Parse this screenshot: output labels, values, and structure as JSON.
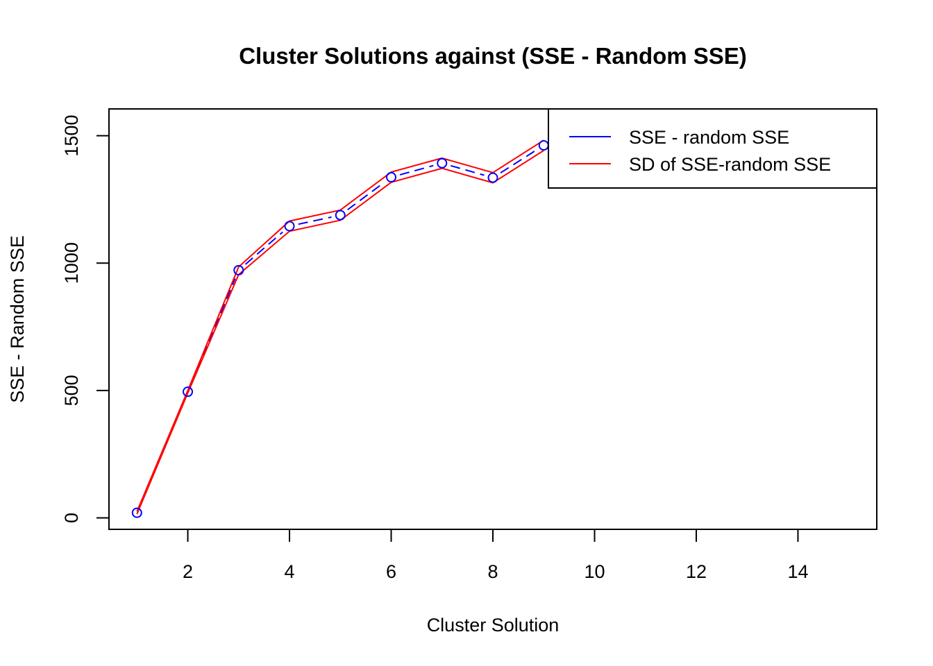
{
  "chart_data": {
    "type": "line",
    "title": "Cluster Solutions against (SSE - Random SSE)",
    "xlabel": "Cluster Solution",
    "ylabel": "SSE - Random SSE",
    "xlim": [
      0.45,
      15.55
    ],
    "ylim": [
      -45,
      1605
    ],
    "x_ticks": [
      2,
      4,
      6,
      8,
      10,
      12,
      14
    ],
    "y_ticks": [
      0,
      500,
      1000,
      1500
    ],
    "grid": false,
    "legend_position": "top-right",
    "x": [
      1,
      2,
      3,
      4,
      5,
      6,
      7,
      8,
      9
    ],
    "series": [
      {
        "name": "SSE - random SSE",
        "color": "#0000ff",
        "line_style": "dashed",
        "markers": "open-circle",
        "values": [
          20,
          495,
          972,
          1145,
          1188,
          1337,
          1392,
          1335,
          1462
        ]
      },
      {
        "name": "SD of SSE-random SSE",
        "color": "#ff0000",
        "line_style": "solid",
        "band": true,
        "upper": [
          25,
          500,
          985,
          1165,
          1208,
          1357,
          1412,
          1355,
          1482
        ],
        "lower": [
          15,
          490,
          955,
          1125,
          1168,
          1317,
          1372,
          1315,
          1442
        ]
      }
    ]
  }
}
